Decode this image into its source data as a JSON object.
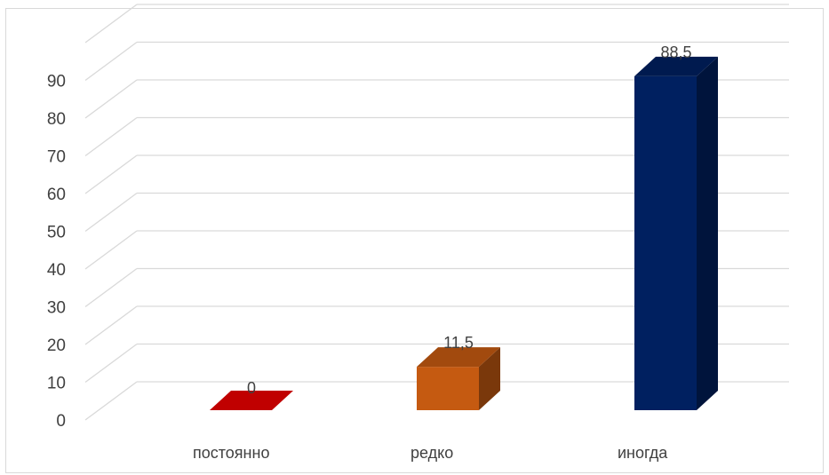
{
  "chart_data": {
    "type": "bar",
    "style": "3d-column",
    "categories": [
      "постоянно",
      "редко",
      "иногда"
    ],
    "values": [
      0,
      11.5,
      88.5
    ],
    "data_labels": [
      "0",
      "11,5",
      "88,5"
    ],
    "colors": [
      "#c00000",
      "#c55a11",
      "#002060"
    ],
    "ylim": [
      0,
      100
    ],
    "yticks": [
      0,
      10,
      20,
      30,
      40,
      50,
      60,
      70,
      80,
      90
    ],
    "grid": true,
    "legend": "none"
  }
}
